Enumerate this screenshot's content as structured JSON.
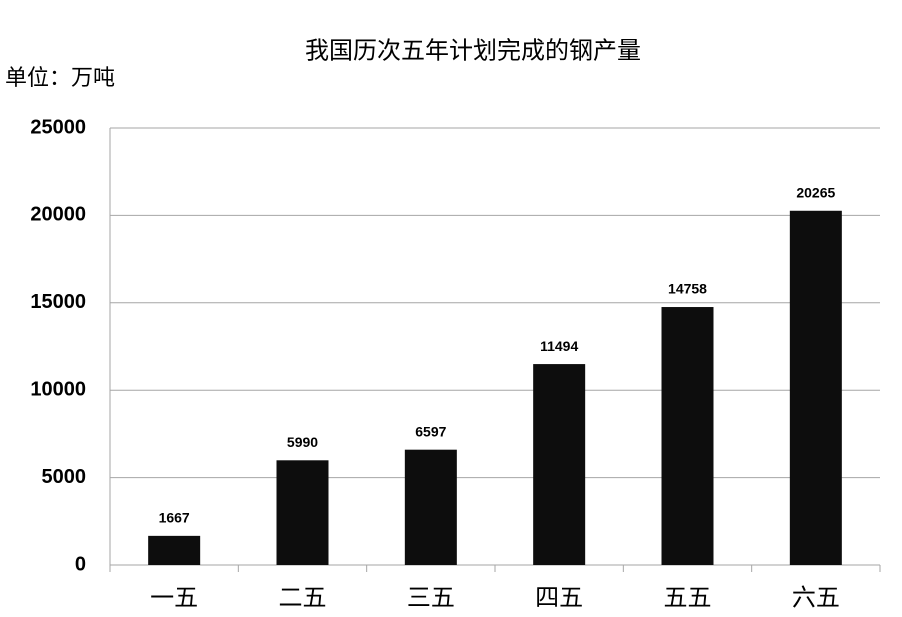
{
  "chart_data": {
    "type": "bar",
    "title": "我国历次五年计划完成的钢产量",
    "unit_label": "单位：万吨",
    "categories": [
      "一五",
      "二五",
      "三五",
      "四五",
      "五五",
      "六五"
    ],
    "values": [
      1667,
      5990,
      6597,
      11494,
      14758,
      20265
    ],
    "color": "#0d0d0d",
    "ylim": [
      0,
      25000
    ],
    "yticks": [
      0,
      5000,
      10000,
      15000,
      20000,
      25000
    ],
    "grid": true
  }
}
